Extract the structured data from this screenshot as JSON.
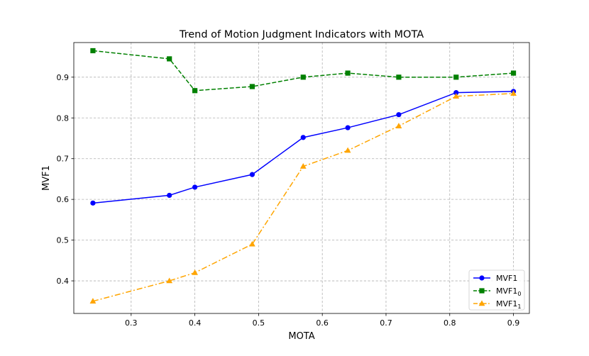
{
  "chart_data": {
    "type": "line",
    "title": "Trend of Motion Judgment Indicators with MOTA",
    "xlabel": "MOTA",
    "ylabel": "MVF1",
    "xlim": [
      0.21,
      0.925
    ],
    "ylim": [
      0.32,
      0.985
    ],
    "xticks": [
      0.3,
      0.4,
      0.5,
      0.6,
      0.7,
      0.8,
      0.9
    ],
    "xtick_labels": [
      "0.3",
      "0.4",
      "0.5",
      "0.6",
      "0.7",
      "0.8",
      "0.9"
    ],
    "yticks": [
      0.4,
      0.5,
      0.6,
      0.7,
      0.8,
      0.9
    ],
    "ytick_labels": [
      "0.4",
      "0.5",
      "0.6",
      "0.7",
      "0.8",
      "0.9"
    ],
    "grid": true,
    "legend_position": "lower right",
    "x": [
      0.24,
      0.36,
      0.4,
      0.49,
      0.57,
      0.64,
      0.72,
      0.81,
      0.9
    ],
    "series": [
      {
        "name": "MVF1",
        "legend_main": "MVF1",
        "legend_sub": "",
        "color": "#0000ff",
        "marker": "circle",
        "line_style": "solid",
        "values": [
          0.591,
          0.61,
          0.63,
          0.661,
          0.752,
          0.776,
          0.808,
          0.862,
          0.865
        ]
      },
      {
        "name": "MVF1_0",
        "legend_main": "MVF1",
        "legend_sub": "0",
        "color": "#008000",
        "marker": "square",
        "line_style": "dashed",
        "values": [
          0.965,
          0.945,
          0.867,
          0.877,
          0.9,
          0.91,
          0.9,
          0.9,
          0.91
        ]
      },
      {
        "name": "MVF1_1",
        "legend_main": "MVF1",
        "legend_sub": "1",
        "color": "#ffa500",
        "marker": "triangle",
        "line_style": "dashdot",
        "values": [
          0.35,
          0.4,
          0.42,
          0.49,
          0.681,
          0.72,
          0.78,
          0.853,
          0.86
        ]
      }
    ]
  }
}
